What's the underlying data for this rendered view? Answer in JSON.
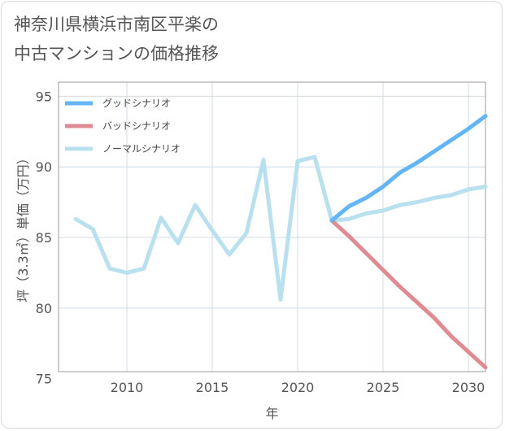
{
  "title_lines": [
    "神奈川県横浜市南区平楽の",
    "中古マンションの価格推移"
  ],
  "chart_data": {
    "type": "line",
    "title": "神奈川県横浜市南区平楽の中古マンションの価格推移",
    "xlabel": "年",
    "ylabel": "坪（3.3㎡）単価（万円）",
    "xlim": [
      2006,
      2031
    ],
    "ylim": [
      75.5,
      96
    ],
    "xticks": [
      2010,
      2015,
      2020,
      2025,
      2030
    ],
    "yticks": [
      75,
      80,
      85,
      90,
      95
    ],
    "grid": true,
    "legend_position": "top-left",
    "series": [
      {
        "name": "グッドシナリオ",
        "color": "#64b5f6",
        "x": [
          2022,
          2023,
          2024,
          2025,
          2026,
          2027,
          2028,
          2029,
          2030,
          2031
        ],
        "y": [
          86.2,
          87.2,
          87.8,
          88.6,
          89.6,
          90.3,
          91.1,
          91.9,
          92.7,
          93.6
        ]
      },
      {
        "name": "バッドシナリオ",
        "color": "#e08b92",
        "x": [
          2022,
          2023,
          2024,
          2025,
          2026,
          2027,
          2028,
          2029,
          2030,
          2031
        ],
        "y": [
          86.2,
          85.1,
          83.9,
          82.7,
          81.5,
          80.4,
          79.3,
          78.0,
          76.9,
          75.8
        ]
      },
      {
        "name": "ノーマルシナリオ",
        "color": "#b9e0ef",
        "x": [
          2007,
          2008,
          2009,
          2010,
          2011,
          2012,
          2013,
          2014,
          2015,
          2016,
          2017,
          2018,
          2019,
          2020,
          2021,
          2022,
          2023,
          2024,
          2025,
          2026,
          2027,
          2028,
          2029,
          2030,
          2031
        ],
        "y": [
          86.3,
          85.6,
          82.8,
          82.5,
          82.8,
          86.4,
          84.6,
          87.3,
          85.5,
          83.8,
          85.3,
          90.5,
          80.6,
          90.4,
          90.7,
          86.2,
          86.3,
          86.7,
          86.9,
          87.3,
          87.5,
          87.8,
          88.0,
          88.4,
          88.6
        ]
      }
    ]
  }
}
